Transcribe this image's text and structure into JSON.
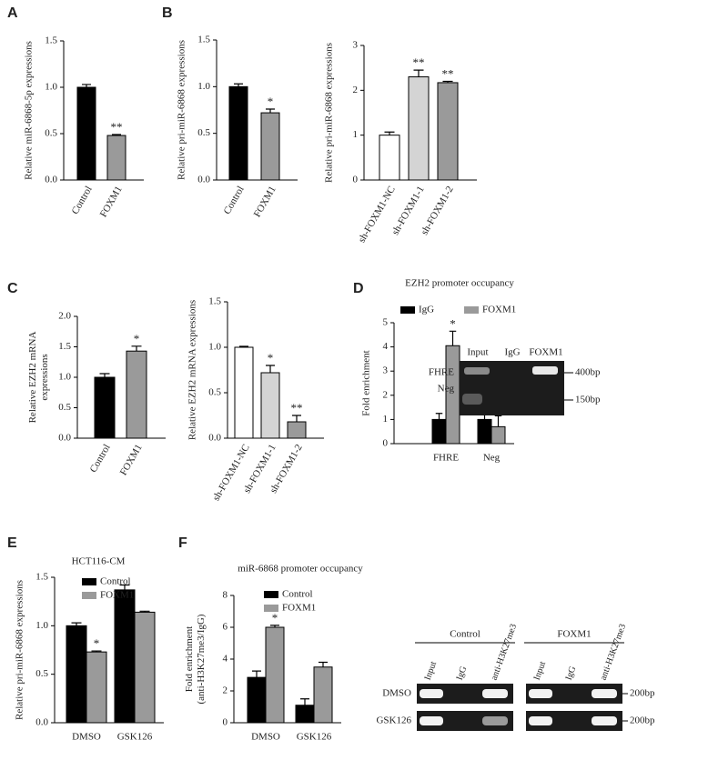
{
  "panel_labels": [
    "A",
    "B",
    "C",
    "D",
    "E",
    "F"
  ],
  "chart_data": [
    {
      "type": "bar",
      "ylabel": "Relative miR-6868-5p expressions",
      "categories": [
        "Control",
        "FOXM1"
      ],
      "values": [
        1.0,
        0.48
      ],
      "errors": [
        0.03,
        0.01
      ],
      "colors": [
        "#000000",
        "#9a9a9a"
      ],
      "bar_labels": [
        null,
        "**"
      ],
      "ylim": [
        0,
        1.5
      ],
      "yticks": [
        {
          "value": 0,
          "label": "0.0"
        },
        0.5,
        {
          "value": 1,
          "label": "1.0"
        },
        1.5
      ]
    },
    {
      "type": "bar",
      "ylabel": "Relative pri-miR-6868 expressions",
      "categories": [
        "Control",
        "FOXM1"
      ],
      "values": [
        1.0,
        0.72
      ],
      "errors": [
        0.03,
        0.04
      ],
      "colors": [
        "#000000",
        "#9a9a9a"
      ],
      "bar_labels": [
        null,
        "*"
      ],
      "ylim": [
        0,
        1.5
      ],
      "yticks": [
        {
          "value": 0,
          "label": "0.0"
        },
        0.5,
        {
          "value": 1,
          "label": "1.0"
        },
        1.5
      ]
    },
    {
      "type": "bar",
      "ylabel": "Relative pri-miR-6868 expressions",
      "categories": [
        "sh-FOXM1-NC",
        "sh-FOXM1-1",
        "sh-FOXM1-2"
      ],
      "values": [
        1.0,
        2.3,
        2.17
      ],
      "errors": [
        0.07,
        0.15,
        0.03
      ],
      "colors": [
        "#ffffff",
        "#d4d4d4",
        "#9a9a9a"
      ],
      "bar_labels": [
        null,
        "**",
        "**"
      ],
      "ylim": [
        0,
        3
      ],
      "yticks": [
        0,
        1,
        2,
        3
      ]
    },
    {
      "type": "bar",
      "ylabel": [
        "Relative EZH2 mRNA",
        "expressions"
      ],
      "categories": [
        "Control",
        "FOXM1"
      ],
      "values": [
        1.0,
        1.43
      ],
      "errors": [
        0.06,
        0.08
      ],
      "colors": [
        "#000000",
        "#9a9a9a"
      ],
      "bar_labels": [
        null,
        "*"
      ],
      "ylim": [
        0,
        2
      ],
      "yticks": [
        {
          "value": 0,
          "label": "0.0"
        },
        0.5,
        {
          "value": 1,
          "label": "1.0"
        },
        1.5,
        {
          "value": 2,
          "label": "2.0"
        }
      ]
    },
    {
      "type": "bar",
      "ylabel": "Relative EZH2 mRNA expressions",
      "categories": [
        "sh-FOXM1-NC",
        "sh-FOXM1-1",
        "sh-FOXM1-2"
      ],
      "values": [
        1.0,
        0.72,
        0.18
      ],
      "errors": [
        0.01,
        0.08,
        0.07
      ],
      "colors": [
        "#ffffff",
        "#d4d4d4",
        "#9a9a9a"
      ],
      "bar_labels": [
        null,
        "*",
        "**"
      ],
      "ylim": [
        0,
        1.5
      ],
      "yticks": [
        {
          "value": 0,
          "label": "0.0"
        },
        0.5,
        {
          "value": 1,
          "label": "1.0"
        },
        1.5
      ]
    },
    {
      "type": "grouped_bar",
      "title": "EZH2 promoter occupancy",
      "ylabel": "Fold enrichment",
      "categories": [
        "FHRE",
        "Neg"
      ],
      "legend": "top",
      "series": [
        {
          "name": "IgG",
          "color": "#000000",
          "values": [
            1.0,
            1.0
          ],
          "errors": [
            0.25,
            0.2
          ],
          "bar_labels": [
            null,
            null
          ]
        },
        {
          "name": "FOXM1",
          "color": "#9a9a9a",
          "values": [
            4.05,
            0.7
          ],
          "errors": [
            0.6,
            0.45
          ],
          "bar_labels": [
            "*",
            null
          ]
        }
      ],
      "ylim": [
        0,
        5
      ],
      "yticks": [
        0,
        1,
        2,
        3,
        4,
        5
      ]
    },
    {
      "type": "grouped_bar",
      "title": "HCT116-CM",
      "ylabel": "Relative pri-miR-6868 expressions",
      "categories": [
        "DMSO",
        "GSK126"
      ],
      "legend": "upper left",
      "series": [
        {
          "name": "Control",
          "color": "#000000",
          "values": [
            1.0,
            1.37
          ],
          "errors": [
            0.03,
            0.05
          ],
          "bar_labels": [
            null,
            null
          ]
        },
        {
          "name": "FOXM1",
          "color": "#9a9a9a",
          "values": [
            0.73,
            1.14
          ],
          "errors": [
            0.01,
            0.01
          ],
          "bar_labels": [
            "*",
            null
          ]
        }
      ],
      "ylim": [
        0,
        1.5
      ],
      "yticks": [
        {
          "value": 0,
          "label": "0.0"
        },
        0.5,
        {
          "value": 1,
          "label": "1.0"
        },
        1.5
      ]
    },
    {
      "type": "grouped_bar",
      "title": "miR-6868 promoter occupancy",
      "ylabel": [
        "Fold enrichment",
        "(anti-H3K27me3/IgG)"
      ],
      "categories": [
        "DMSO",
        "GSK126"
      ],
      "legend": "upper left",
      "series": [
        {
          "name": "Control",
          "color": "#000000",
          "values": [
            2.85,
            1.1
          ],
          "errors": [
            0.4,
            0.4
          ],
          "bar_labels": [
            null,
            null
          ]
        },
        {
          "name": "FOXM1",
          "color": "#9a9a9a",
          "values": [
            6.0,
            3.5
          ],
          "errors": [
            0.12,
            0.3
          ],
          "bar_labels": [
            "*",
            null
          ]
        }
      ],
      "ylim": [
        0,
        8
      ],
      "yticks": [
        0,
        2,
        4,
        6,
        8
      ]
    }
  ],
  "gels": [
    {
      "lanes": [
        "Input",
        "IgG",
        "FOXM1"
      ],
      "rows": [
        "FHRE",
        "Neg"
      ],
      "sizes": [
        "400bp",
        "150bp"
      ]
    },
    {
      "groups": [
        "Control",
        "FOXM1"
      ],
      "lanes": [
        "Input",
        "IgG",
        "anti-H3K27me3"
      ],
      "rows": [
        "DMSO",
        "GSK126"
      ],
      "sizes": [
        "200bp",
        "200bp"
      ]
    }
  ]
}
